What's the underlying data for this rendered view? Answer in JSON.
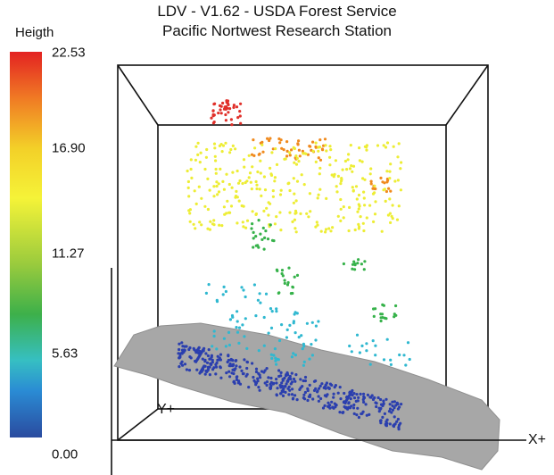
{
  "title": {
    "line1": "LDV - V1.62 - USDA Forest Service",
    "line2": "Pacific Nortwest Research Station"
  },
  "legend": {
    "label": "Heigth",
    "ticks": [
      "22.53",
      "16.90",
      "11.27",
      "5.63",
      "0.00"
    ]
  },
  "axes": {
    "x_label": "X+",
    "y_label": "Y+"
  },
  "colors": {
    "ground_surface": "#a9a9a9",
    "ground_points": "#2b3fae",
    "low_cyan": "#2fb8d0",
    "mid_green": "#36b24a",
    "upper_yellow": "#eded35",
    "top_orange": "#f08a1e",
    "top_red": "#e0302a"
  }
}
